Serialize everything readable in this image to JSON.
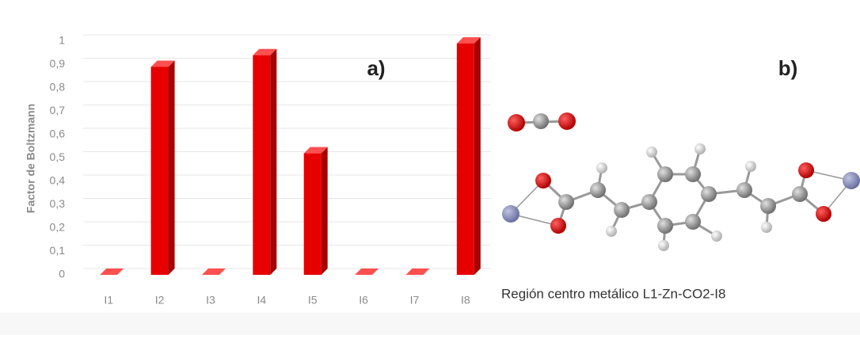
{
  "chart_data": {
    "type": "bar",
    "y_label": "Factor de Boltzmann",
    "panel_a": "a)",
    "panel_b": "b)",
    "caption": "Región centro metálico L1-Zn-CO2-I8",
    "categories": [
      "I1",
      "I2",
      "I3",
      "I4",
      "I5",
      "I6",
      "I7",
      "I8"
    ],
    "values": [
      0,
      0.89,
      0,
      0.94,
      0.52,
      0,
      0,
      0.99
    ],
    "color": "#e60000",
    "ylim": [
      0,
      1
    ],
    "yticks": [
      0,
      {
        "value": 0.1,
        "label": "0,1"
      },
      {
        "value": 0.2,
        "label": "0,2"
      },
      {
        "value": 0.3,
        "label": "0,3"
      },
      {
        "value": 0.4,
        "label": "0,4"
      },
      {
        "value": 0.5,
        "label": "0,5"
      },
      {
        "value": 0.6,
        "label": "0,6"
      },
      {
        "value": 0.7,
        "label": "0,7"
      },
      {
        "value": 0.8,
        "label": "0,8"
      },
      {
        "value": 0.9,
        "label": "0,9"
      },
      1
    ],
    "grid": true
  }
}
